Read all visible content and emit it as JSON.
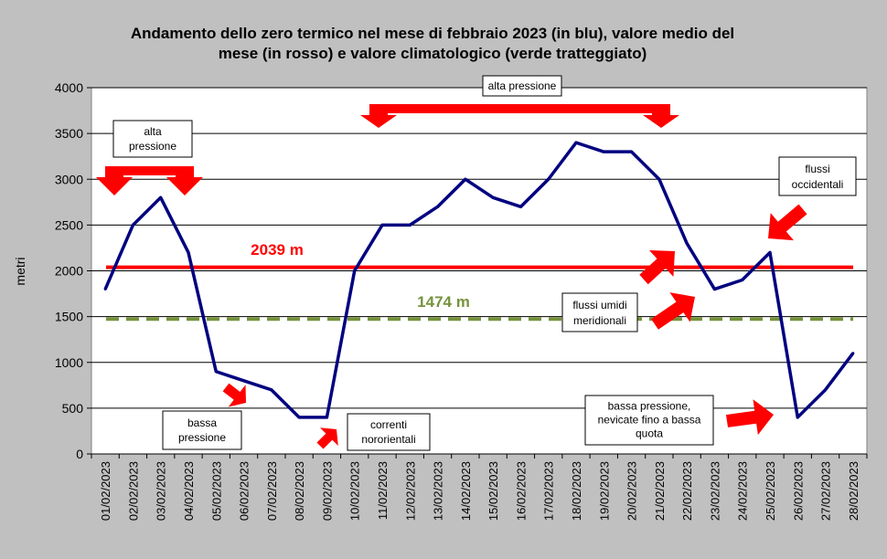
{
  "chart_data": {
    "type": "line",
    "title": "Andamento dello zero termico nel mese di febbraio 2023 (in blu), valore medio del mese (in rosso) e valore climatologico (verde tratteggiato)",
    "title_lines": [
      "Andamento dello zero termico nel mese di febbraio 2023 (in blu), valore medio del",
      "mese (in rosso) e valore climatologico (verde tratteggiato)"
    ],
    "xlabel": "",
    "ylabel": "metri",
    "ylim": [
      0,
      4000
    ],
    "yticks": [
      0,
      500,
      1000,
      1500,
      2000,
      2500,
      3000,
      3500,
      4000
    ],
    "grid": true,
    "categories": [
      "01/02/2023",
      "02/02/2023",
      "03/02/2023",
      "04/02/2023",
      "05/02/2023",
      "06/02/2023",
      "07/02/2023",
      "08/02/2023",
      "09/02/2023",
      "10/02/2023",
      "11/02/2023",
      "12/02/2023",
      "13/02/2023",
      "14/02/2023",
      "15/02/2023",
      "16/02/2023",
      "17/02/2023",
      "18/02/2023",
      "19/02/2023",
      "20/02/2023",
      "21/02/2023",
      "22/02/2023",
      "23/02/2023",
      "24/02/2023",
      "25/02/2023",
      "26/02/2023",
      "27/02/2023",
      "28/02/2023"
    ],
    "series": [
      {
        "values": [
          1800,
          2500,
          2800,
          2200,
          900,
          800,
          700,
          400,
          400,
          2000,
          2500,
          2500,
          2700,
          3000,
          2800,
          2700,
          3000,
          3400,
          3300,
          3300,
          3000,
          2300,
          1800,
          1900,
          2200,
          400,
          700,
          1100
        ],
        "color": "#000080"
      }
    ],
    "reference_lines": [
      {
        "value": 2039,
        "label": "2039 m",
        "color": "#ff0000",
        "style": "solid"
      },
      {
        "value": 1474,
        "label": "1474 m",
        "color": "#76923c",
        "style": "dashed"
      }
    ],
    "annotations": [
      {
        "id": "alta-pressione-1",
        "lines": [
          "alta",
          "pressione"
        ]
      },
      {
        "id": "alta-pressione-2",
        "lines": [
          "alta pressione"
        ]
      },
      {
        "id": "flussi-occidentali",
        "lines": [
          "flussi",
          "occidentali"
        ]
      },
      {
        "id": "flussi-umidi",
        "lines": [
          "flussi umidi",
          "meridionali"
        ]
      },
      {
        "id": "bassa-pressione-1",
        "lines": [
          "bassa",
          "pressione"
        ]
      },
      {
        "id": "correnti",
        "lines": [
          "correnti",
          "nororientali"
        ]
      },
      {
        "id": "bassa-pressione-2",
        "lines": [
          "bassa pressione,",
          "nevicate fino a bassa",
          "quota"
        ]
      }
    ],
    "colors": {
      "plot_bg": "#ffffff",
      "page_bg": "#c0c0c0",
      "arrow": "#ff0000"
    }
  }
}
